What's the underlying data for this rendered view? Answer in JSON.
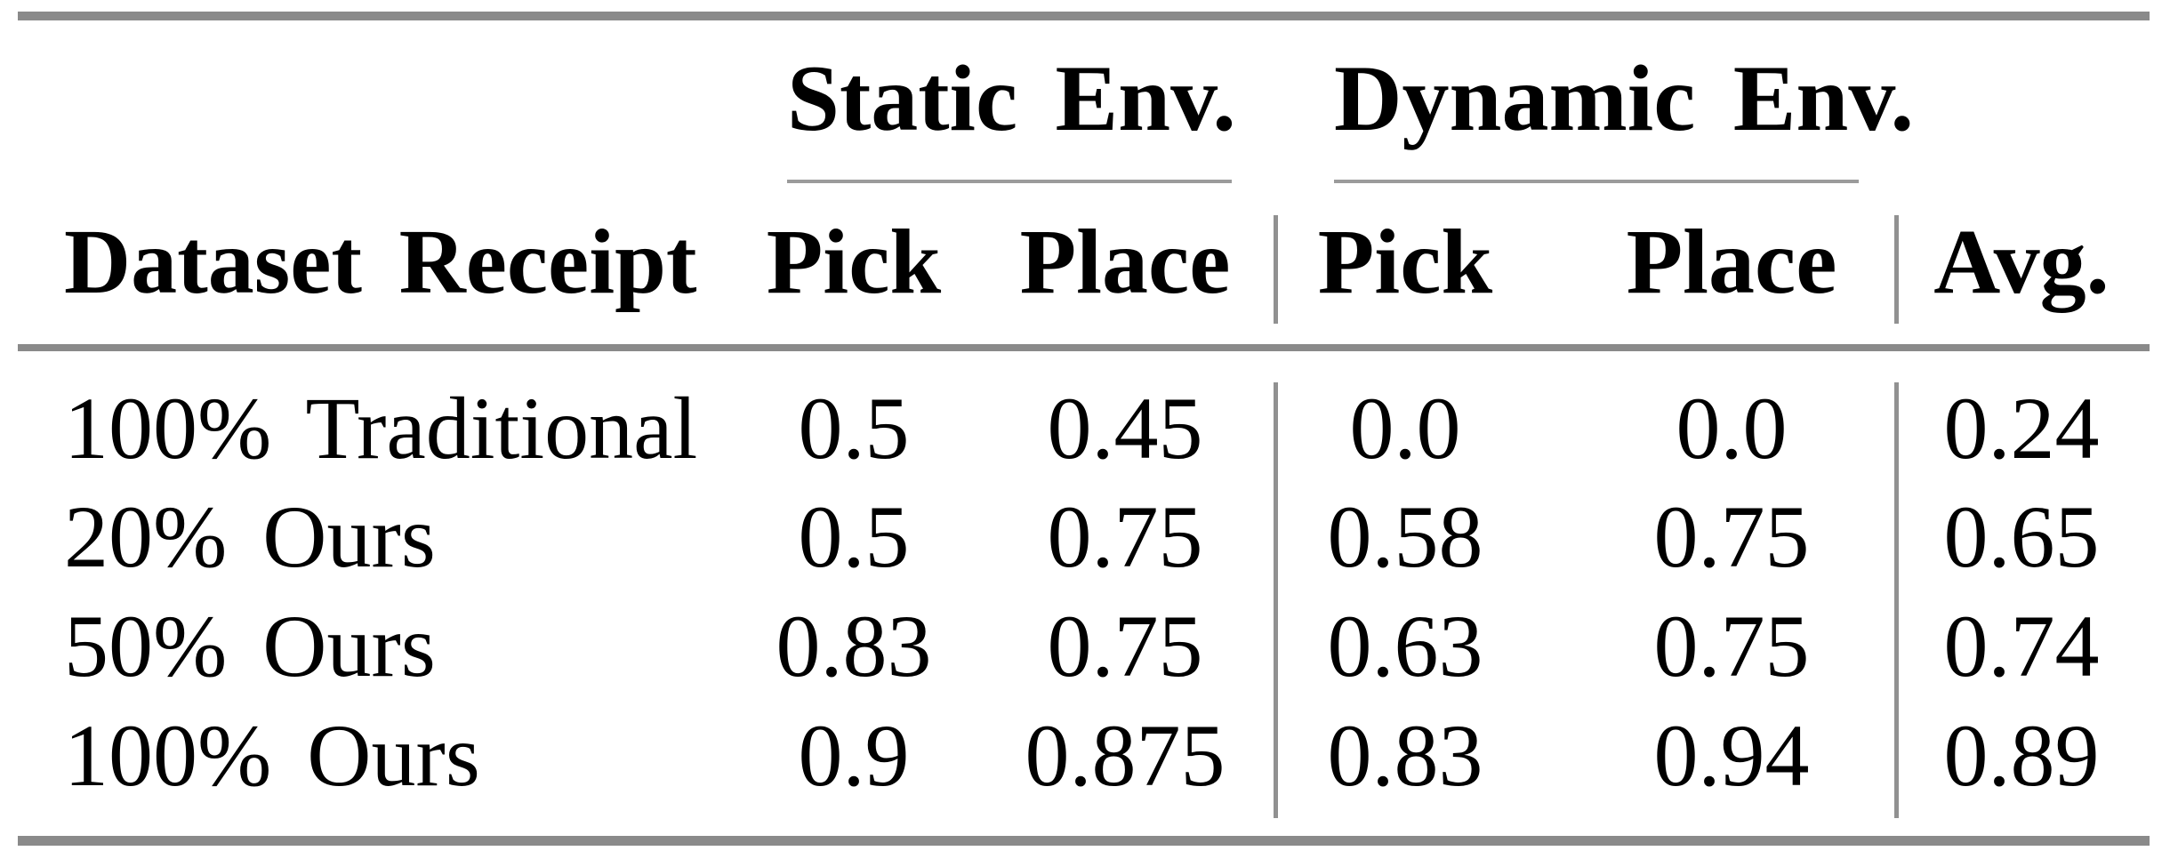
{
  "table": {
    "group_headers": [
      {
        "label": "Static Env."
      },
      {
        "label": "Dynamic Env."
      }
    ],
    "column_headers": [
      "Dataset Receipt",
      "Pick",
      "Place",
      "Pick",
      "Place",
      "Avg."
    ],
    "rows": [
      {
        "label": "100% Traditional",
        "values": [
          "0.5",
          "0.45",
          "0.0",
          "0.0",
          "0.24"
        ]
      },
      {
        "label": "20% Ours",
        "values": [
          "0.5",
          "0.75",
          "0.58",
          "0.75",
          "0.65"
        ]
      },
      {
        "label": "50% Ours",
        "values": [
          "0.83",
          "0.75",
          "0.63",
          "0.75",
          "0.74"
        ]
      },
      {
        "label": "100% Ours",
        "values": [
          "0.9",
          "0.875",
          "0.83",
          "0.94",
          "0.89"
        ]
      }
    ]
  },
  "colors": {
    "text": "#000000",
    "background": "#ffffff",
    "thick_rule": "#8a8a8a",
    "thin_rule": "#9b9b9b",
    "vertical_rule": "#919191"
  },
  "chart_data": {
    "type": "table",
    "column_groups": [
      {
        "label": "Static Env.",
        "columns": [
          "Pick",
          "Place"
        ]
      },
      {
        "label": "Dynamic Env.",
        "columns": [
          "Pick",
          "Place"
        ]
      }
    ],
    "columns": [
      "Dataset Receipt",
      "Static Pick",
      "Static Place",
      "Dynamic Pick",
      "Dynamic Place",
      "Avg."
    ],
    "rows": [
      [
        "100% Traditional",
        0.5,
        0.45,
        0.0,
        0.0,
        0.24
      ],
      [
        "20% Ours",
        0.5,
        0.75,
        0.58,
        0.75,
        0.65
      ],
      [
        "50% Ours",
        0.83,
        0.75,
        0.63,
        0.75,
        0.74
      ],
      [
        "100% Ours",
        0.9,
        0.875,
        0.83,
        0.94,
        0.89
      ]
    ]
  }
}
